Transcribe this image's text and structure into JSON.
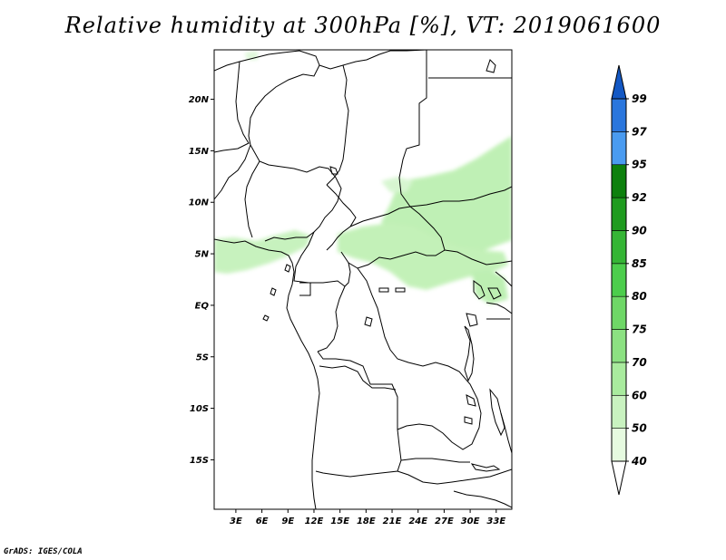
{
  "title": "Relative humidity at 300hPa [%], VT: 2019061600",
  "credit": "GrADS: IGES/COLA",
  "map": {
    "lat_ticks": [
      "20N",
      "15N",
      "10N",
      "5N",
      "EQ",
      "5S",
      "10S",
      "15S"
    ],
    "lon_ticks": [
      "3E",
      "6E",
      "9E",
      "12E",
      "15E",
      "18E",
      "21E",
      "24E",
      "27E",
      "30E",
      "33E"
    ],
    "lon_range": [
      0.5,
      34.8
    ],
    "lat_range": [
      -19.8,
      24.8
    ],
    "fill_color": "#b4f0a8"
  },
  "colorbar": {
    "levels": [
      "40",
      "50",
      "60",
      "70",
      "75",
      "80",
      "85",
      "90",
      "92",
      "95",
      "97",
      "99"
    ],
    "colors": [
      "#ffffff",
      "#e6fae0",
      "#c9f2c0",
      "#a9eb9e",
      "#8ce182",
      "#6fd767",
      "#4ccd4c",
      "#35b535",
      "#1f9b1f",
      "#0d800d",
      "#4a9bf0",
      "#2a76dd",
      "#1358c4"
    ]
  }
}
